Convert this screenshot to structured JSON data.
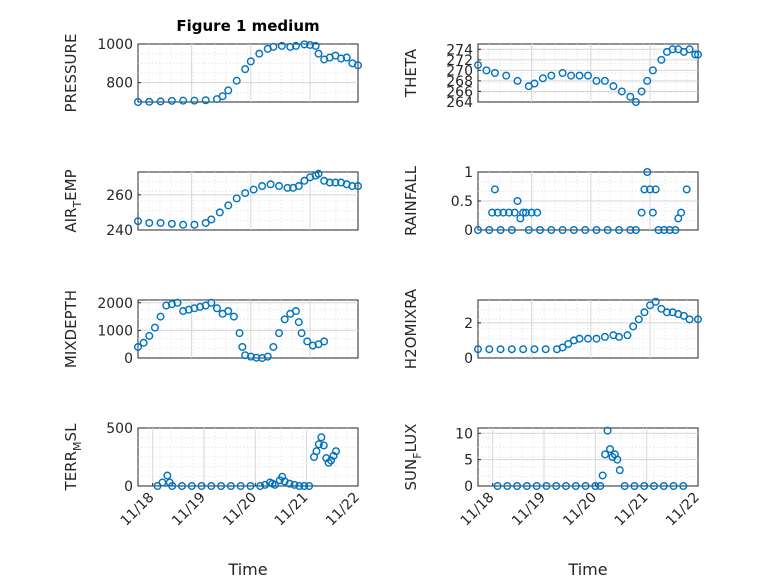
{
  "chart_data": [
    {
      "type": "scatter",
      "id": "pressure",
      "title": "Figure 1 medium",
      "xlabel": "",
      "ylabel": "PRESSURE",
      "ylim": [
        700,
        1000
      ],
      "yticks": [
        800,
        1000
      ],
      "xlim": [
        19.0,
        22.9
      ],
      "xticks": [],
      "xticklabels": [],
      "points": [
        [
          19.0,
          700
        ],
        [
          19.2,
          701
        ],
        [
          19.4,
          703
        ],
        [
          19.6,
          706
        ],
        [
          19.8,
          707
        ],
        [
          20.0,
          707
        ],
        [
          20.2,
          709
        ],
        [
          20.4,
          715
        ],
        [
          20.5,
          730
        ],
        [
          20.6,
          760
        ],
        [
          20.75,
          810
        ],
        [
          20.9,
          870
        ],
        [
          21.0,
          910
        ],
        [
          21.15,
          950
        ],
        [
          21.3,
          975
        ],
        [
          21.4,
          985
        ],
        [
          21.55,
          990
        ],
        [
          21.7,
          985
        ],
        [
          21.8,
          990
        ],
        [
          21.95,
          998
        ],
        [
          22.05,
          995
        ],
        [
          22.15,
          990
        ],
        [
          22.2,
          950
        ],
        [
          22.3,
          920
        ],
        [
          22.4,
          930
        ],
        [
          22.5,
          940
        ],
        [
          22.6,
          925
        ],
        [
          22.7,
          930
        ],
        [
          22.8,
          900
        ],
        [
          22.9,
          890
        ]
      ]
    },
    {
      "type": "scatter",
      "id": "theta",
      "title": "",
      "xlabel": "",
      "ylabel": "THETA",
      "ylim": [
        264,
        275
      ],
      "yticks": [
        264,
        266,
        268,
        270,
        272,
        274
      ],
      "xlim": [
        19.0,
        22.9
      ],
      "xticks": [],
      "xticklabels": [],
      "points": [
        [
          19.0,
          271
        ],
        [
          19.15,
          270
        ],
        [
          19.3,
          269.5
        ],
        [
          19.5,
          269
        ],
        [
          19.7,
          268
        ],
        [
          19.9,
          267
        ],
        [
          20.0,
          267.5
        ],
        [
          20.15,
          268.5
        ],
        [
          20.3,
          269
        ],
        [
          20.5,
          269.5
        ],
        [
          20.65,
          269
        ],
        [
          20.8,
          269
        ],
        [
          20.95,
          269
        ],
        [
          21.1,
          268
        ],
        [
          21.25,
          268
        ],
        [
          21.4,
          267
        ],
        [
          21.55,
          266
        ],
        [
          21.7,
          265
        ],
        [
          21.8,
          264
        ],
        [
          21.9,
          266
        ],
        [
          22.0,
          268
        ],
        [
          22.1,
          270
        ],
        [
          22.25,
          272
        ],
        [
          22.35,
          273.5
        ],
        [
          22.45,
          274
        ],
        [
          22.55,
          274
        ],
        [
          22.65,
          273.5
        ],
        [
          22.75,
          274
        ],
        [
          22.85,
          273
        ],
        [
          22.9,
          273
        ]
      ]
    },
    {
      "type": "scatter",
      "id": "air_temp",
      "title": "",
      "xlabel": "",
      "ylabel": "AIR_TEMP",
      "ylim": [
        240,
        273
      ],
      "yticks": [
        240,
        260
      ],
      "xlim": [
        19.0,
        22.9
      ],
      "xticks": [],
      "xticklabels": [],
      "points": [
        [
          19.0,
          245
        ],
        [
          19.2,
          244
        ],
        [
          19.4,
          244
        ],
        [
          19.6,
          243.5
        ],
        [
          19.8,
          243
        ],
        [
          20.0,
          243
        ],
        [
          20.2,
          244
        ],
        [
          20.3,
          246
        ],
        [
          20.45,
          250
        ],
        [
          20.6,
          254
        ],
        [
          20.75,
          258
        ],
        [
          20.9,
          261
        ],
        [
          21.05,
          263
        ],
        [
          21.2,
          265
        ],
        [
          21.35,
          266
        ],
        [
          21.5,
          265
        ],
        [
          21.65,
          264
        ],
        [
          21.75,
          264
        ],
        [
          21.85,
          265
        ],
        [
          21.95,
          268
        ],
        [
          22.05,
          270
        ],
        [
          22.15,
          271
        ],
        [
          22.2,
          272
        ],
        [
          22.3,
          268
        ],
        [
          22.4,
          267
        ],
        [
          22.5,
          267
        ],
        [
          22.6,
          267
        ],
        [
          22.7,
          266
        ],
        [
          22.8,
          265
        ],
        [
          22.9,
          265
        ]
      ]
    },
    {
      "type": "scatter",
      "id": "rainfall",
      "title": "",
      "xlabel": "",
      "ylabel": "RAINFALL",
      "ylim": [
        0,
        1
      ],
      "yticks": [
        0,
        0.5,
        1
      ],
      "yticklabels": [
        "0",
        "0.5",
        "1"
      ],
      "xlim": [
        19.0,
        22.9
      ],
      "xticks": [],
      "xticklabels": [],
      "points": [
        [
          19.0,
          0
        ],
        [
          19.2,
          0
        ],
        [
          19.4,
          0
        ],
        [
          19.6,
          0
        ],
        [
          19.25,
          0.3
        ],
        [
          19.3,
          0.7
        ],
        [
          19.35,
          0.3
        ],
        [
          19.45,
          0.3
        ],
        [
          19.55,
          0.3
        ],
        [
          19.65,
          0.3
        ],
        [
          19.7,
          0.5
        ],
        [
          19.75,
          0.2
        ],
        [
          19.8,
          0.3
        ],
        [
          19.85,
          0.3
        ],
        [
          19.9,
          0
        ],
        [
          19.95,
          0.3
        ],
        [
          20.05,
          0.3
        ],
        [
          20.1,
          0
        ],
        [
          20.3,
          0
        ],
        [
          20.5,
          0
        ],
        [
          20.7,
          0
        ],
        [
          20.9,
          0
        ],
        [
          21.1,
          0
        ],
        [
          21.3,
          0
        ],
        [
          21.5,
          0
        ],
        [
          21.7,
          0
        ],
        [
          21.8,
          0
        ],
        [
          21.9,
          0.3
        ],
        [
          21.95,
          0.7
        ],
        [
          22.0,
          1.0
        ],
        [
          22.05,
          0.7
        ],
        [
          22.1,
          0.3
        ],
        [
          22.15,
          0.7
        ],
        [
          22.2,
          0
        ],
        [
          22.3,
          0
        ],
        [
          22.4,
          0
        ],
        [
          22.5,
          0
        ],
        [
          22.55,
          0.2
        ],
        [
          22.6,
          0.3
        ],
        [
          22.7,
          0.7
        ]
      ]
    },
    {
      "type": "scatter",
      "id": "mixdepth",
      "title": "",
      "xlabel": "",
      "ylabel": "MIXDEPTH",
      "ylim": [
        0,
        2100
      ],
      "yticks": [
        0,
        1000,
        2000
      ],
      "xlim": [
        19.0,
        22.9
      ],
      "xticks": [],
      "xticklabels": [],
      "points": [
        [
          19.0,
          400
        ],
        [
          19.1,
          550
        ],
        [
          19.2,
          800
        ],
        [
          19.3,
          1100
        ],
        [
          19.4,
          1500
        ],
        [
          19.5,
          1900
        ],
        [
          19.6,
          1950
        ],
        [
          19.7,
          2000
        ],
        [
          19.8,
          1700
        ],
        [
          19.9,
          1750
        ],
        [
          20.0,
          1800
        ],
        [
          20.1,
          1850
        ],
        [
          20.2,
          1900
        ],
        [
          20.3,
          2000
        ],
        [
          20.4,
          1800
        ],
        [
          20.5,
          1600
        ],
        [
          20.6,
          1700
        ],
        [
          20.7,
          1500
        ],
        [
          20.8,
          900
        ],
        [
          20.85,
          400
        ],
        [
          20.9,
          100
        ],
        [
          21.0,
          50
        ],
        [
          21.1,
          10
        ],
        [
          21.2,
          0
        ],
        [
          21.3,
          50
        ],
        [
          21.4,
          400
        ],
        [
          21.5,
          900
        ],
        [
          21.6,
          1400
        ],
        [
          21.7,
          1600
        ],
        [
          21.8,
          1700
        ],
        [
          21.85,
          1300
        ],
        [
          21.9,
          900
        ],
        [
          22.0,
          600
        ],
        [
          22.1,
          450
        ],
        [
          22.2,
          500
        ],
        [
          22.3,
          600
        ]
      ]
    },
    {
      "type": "scatter",
      "id": "h2omixra",
      "title": "",
      "xlabel": "",
      "ylabel": "H2OMIXRA",
      "ylim": [
        0,
        3.3
      ],
      "yticks": [
        0,
        2
      ],
      "xlim": [
        19.0,
        22.9
      ],
      "xticks": [],
      "xticklabels": [],
      "points": [
        [
          19.0,
          0.5
        ],
        [
          19.2,
          0.5
        ],
        [
          19.4,
          0.5
        ],
        [
          19.6,
          0.5
        ],
        [
          19.8,
          0.5
        ],
        [
          20.0,
          0.5
        ],
        [
          20.2,
          0.5
        ],
        [
          20.4,
          0.5
        ],
        [
          20.5,
          0.6
        ],
        [
          20.6,
          0.8
        ],
        [
          20.7,
          1.0
        ],
        [
          20.8,
          1.1
        ],
        [
          20.95,
          1.1
        ],
        [
          21.1,
          1.1
        ],
        [
          21.25,
          1.2
        ],
        [
          21.4,
          1.3
        ],
        [
          21.5,
          1.2
        ],
        [
          21.65,
          1.3
        ],
        [
          21.75,
          1.8
        ],
        [
          21.85,
          2.2
        ],
        [
          21.95,
          2.6
        ],
        [
          22.05,
          3.0
        ],
        [
          22.15,
          3.2
        ],
        [
          22.25,
          2.8
        ],
        [
          22.35,
          2.6
        ],
        [
          22.45,
          2.6
        ],
        [
          22.55,
          2.5
        ],
        [
          22.65,
          2.4
        ],
        [
          22.75,
          2.2
        ],
        [
          22.9,
          2.2
        ]
      ]
    },
    {
      "type": "scatter",
      "id": "terr_msl",
      "title": "",
      "xlabel": "Time",
      "ylabel": "TERR_MSL",
      "ylim": [
        0,
        500
      ],
      "yticks": [
        0,
        500
      ],
      "xlim": [
        18.6,
        23.1
      ],
      "xticks": [
        18.9,
        19.95,
        21.0,
        22.05,
        23.1
      ],
      "xticklabels": [
        "11/18",
        "11/19",
        "11/20",
        "11/21",
        "11/22"
      ],
      "points": [
        [
          19.0,
          0
        ],
        [
          19.1,
          30
        ],
        [
          19.2,
          90
        ],
        [
          19.25,
          30
        ],
        [
          19.3,
          0
        ],
        [
          19.5,
          0
        ],
        [
          19.7,
          0
        ],
        [
          19.9,
          0
        ],
        [
          20.1,
          0
        ],
        [
          20.3,
          0
        ],
        [
          20.5,
          0
        ],
        [
          20.7,
          0
        ],
        [
          20.9,
          0
        ],
        [
          21.1,
          0
        ],
        [
          21.2,
          10
        ],
        [
          21.3,
          30
        ],
        [
          21.35,
          20
        ],
        [
          21.4,
          10
        ],
        [
          21.5,
          50
        ],
        [
          21.55,
          80
        ],
        [
          21.6,
          40
        ],
        [
          21.7,
          20
        ],
        [
          21.8,
          10
        ],
        [
          21.9,
          0
        ],
        [
          22.0,
          0
        ],
        [
          22.1,
          0
        ],
        [
          22.2,
          250
        ],
        [
          22.25,
          300
        ],
        [
          22.3,
          360
        ],
        [
          22.35,
          420
        ],
        [
          22.4,
          350
        ],
        [
          22.45,
          240
        ],
        [
          22.5,
          200
        ],
        [
          22.55,
          220
        ],
        [
          22.6,
          260
        ],
        [
          22.65,
          300
        ]
      ]
    },
    {
      "type": "scatter",
      "id": "sun_flux",
      "title": "",
      "xlabel": "Time",
      "ylabel": "SUN_FLUX",
      "ylim": [
        0,
        11
      ],
      "yticks": [
        0,
        5,
        10
      ],
      "xlim": [
        18.6,
        23.1
      ],
      "xticks": [
        18.9,
        19.95,
        21.0,
        22.05,
        23.1
      ],
      "xticklabels": [
        "11/18",
        "11/19",
        "11/20",
        "11/21",
        "11/22"
      ],
      "points": [
        [
          19.0,
          0
        ],
        [
          19.2,
          0
        ],
        [
          19.4,
          0
        ],
        [
          19.6,
          0
        ],
        [
          19.8,
          0
        ],
        [
          20.0,
          0
        ],
        [
          20.2,
          0
        ],
        [
          20.4,
          0
        ],
        [
          20.6,
          0
        ],
        [
          20.8,
          0
        ],
        [
          21.0,
          0
        ],
        [
          21.1,
          0
        ],
        [
          21.15,
          2
        ],
        [
          21.2,
          6
        ],
        [
          21.25,
          10.5
        ],
        [
          21.3,
          7
        ],
        [
          21.35,
          5.5
        ],
        [
          21.4,
          6
        ],
        [
          21.45,
          5
        ],
        [
          21.5,
          3
        ],
        [
          21.6,
          0
        ],
        [
          21.8,
          0
        ],
        [
          22.0,
          0
        ],
        [
          22.2,
          0
        ],
        [
          22.4,
          0
        ],
        [
          22.6,
          0
        ],
        [
          22.8,
          0
        ]
      ]
    }
  ],
  "subscripts": {
    "air_temp": [
      "AIR",
      "T",
      "EMP"
    ],
    "terr_msl": [
      "TERR",
      "M",
      "SL"
    ],
    "sun_flux": [
      "SUN",
      "F",
      "LUX"
    ]
  }
}
